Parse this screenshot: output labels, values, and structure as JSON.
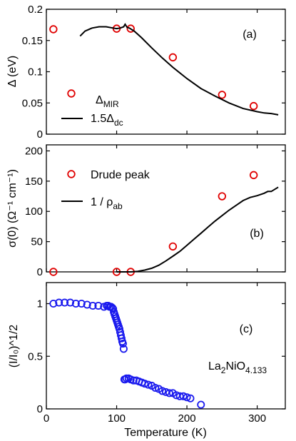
{
  "chart_data": [
    {
      "type": "scatter",
      "panel_label": "(a)",
      "xlim": [
        0,
        340
      ],
      "ylim": [
        0,
        0.2
      ],
      "ylabel": "Δ  (eV)",
      "yticks": [
        "0",
        "0.05",
        "0.1",
        "0.15",
        "0.2"
      ],
      "ytick_values": [
        0,
        0.05,
        0.1,
        0.15,
        0.2
      ],
      "series": [
        {
          "name": "Δ_MIR",
          "name_main": "Δ",
          "name_sub": "MIR",
          "style": "open-circle",
          "color": "#e00000",
          "x": [
            10,
            100,
            120,
            180,
            250,
            295
          ],
          "y": [
            0.168,
            0.169,
            0.169,
            0.123,
            0.063,
            0.045
          ]
        },
        {
          "name": "1.5Δ_dc",
          "name_main": "1.5Δ",
          "name_sub": "dc",
          "style": "line",
          "color": "#000000",
          "x": [
            48,
            55,
            65,
            75,
            85,
            95,
            100,
            105,
            110,
            112,
            115,
            118,
            125,
            135,
            150,
            165,
            180,
            200,
            220,
            240,
            260,
            280,
            300,
            310,
            320,
            330
          ],
          "y": [
            0.157,
            0.165,
            0.17,
            0.172,
            0.172,
            0.17,
            0.169,
            0.17,
            0.172,
            0.176,
            0.171,
            0.17,
            0.165,
            0.155,
            0.138,
            0.122,
            0.107,
            0.089,
            0.073,
            0.061,
            0.05,
            0.041,
            0.036,
            0.034,
            0.033,
            0.031
          ]
        }
      ]
    },
    {
      "type": "scatter",
      "panel_label": "(b)",
      "xlim": [
        0,
        340
      ],
      "ylim": [
        0,
        210
      ],
      "ylabel": "σ(0)  (Ω⁻¹ cm⁻¹)",
      "yticks": [
        "0",
        "50",
        "100",
        "150",
        "200"
      ],
      "ytick_values": [
        0,
        50,
        100,
        150,
        200
      ],
      "series": [
        {
          "name": "Drude peak",
          "name_main": "Drude peak",
          "name_sub": "",
          "style": "open-circle",
          "color": "#e00000",
          "x": [
            10,
            100,
            120,
            180,
            250,
            295
          ],
          "y": [
            0,
            0,
            0,
            42,
            125,
            160
          ]
        },
        {
          "name": "1 / ρ_ab",
          "name_main": "1 / ρ",
          "name_sub": "ab",
          "style": "line",
          "color": "#000000",
          "x": [
            100,
            120,
            130,
            140,
            150,
            160,
            170,
            180,
            190,
            200,
            210,
            220,
            230,
            240,
            250,
            260,
            270,
            280,
            290,
            300,
            310,
            315,
            320,
            330
          ],
          "y": [
            0,
            0,
            1,
            3,
            6,
            11,
            18,
            26,
            34,
            44,
            54,
            64,
            74,
            84,
            93,
            102,
            110,
            118,
            123,
            126,
            130,
            133,
            133,
            140
          ]
        }
      ]
    },
    {
      "type": "scatter",
      "panel_label": "(c)",
      "annotation_main": "La",
      "annotation_parts": [
        "La",
        "2",
        "NiO",
        "4.133"
      ],
      "xlim": [
        0,
        340
      ],
      "ylim": [
        0,
        1.2
      ],
      "xlabel": "Temperature  (K)",
      "ylabel": "(I/I₀)^1/2",
      "xticks": [
        "0",
        "100",
        "200",
        "300"
      ],
      "xtick_values": [
        0,
        100,
        200,
        300
      ],
      "yticks": [
        "0",
        "0.5",
        "1"
      ],
      "ytick_values": [
        0,
        0.5,
        1
      ],
      "series": [
        {
          "name": "",
          "style": "open-circle",
          "color": "#1a1aee",
          "x": [
            10,
            18,
            26,
            34,
            42,
            50,
            58,
            66,
            74,
            82,
            86,
            88,
            90,
            92,
            94,
            95,
            96,
            97,
            98,
            99,
            100,
            101,
            102,
            103,
            104,
            105,
            106,
            107,
            108,
            109,
            110,
            111,
            112,
            114,
            117,
            120,
            124,
            128,
            132,
            136,
            140,
            145,
            150,
            155,
            160,
            165,
            170,
            175,
            180,
            185,
            190,
            195,
            200,
            205,
            220
          ],
          "y": [
            1.0,
            1.01,
            1.01,
            1.01,
            1.0,
            1.0,
            0.99,
            0.98,
            0.98,
            0.97,
            0.98,
            0.98,
            0.97,
            0.97,
            0.96,
            0.95,
            0.92,
            0.9,
            0.88,
            0.86,
            0.84,
            0.82,
            0.8,
            0.78,
            0.76,
            0.73,
            0.7,
            0.67,
            0.64,
            0.62,
            0.57,
            0.28,
            0.28,
            0.29,
            0.29,
            0.28,
            0.27,
            0.27,
            0.26,
            0.25,
            0.24,
            0.23,
            0.22,
            0.2,
            0.19,
            0.17,
            0.16,
            0.15,
            0.15,
            0.13,
            0.12,
            0.12,
            0.11,
            0.1,
            0.04
          ]
        }
      ]
    }
  ]
}
